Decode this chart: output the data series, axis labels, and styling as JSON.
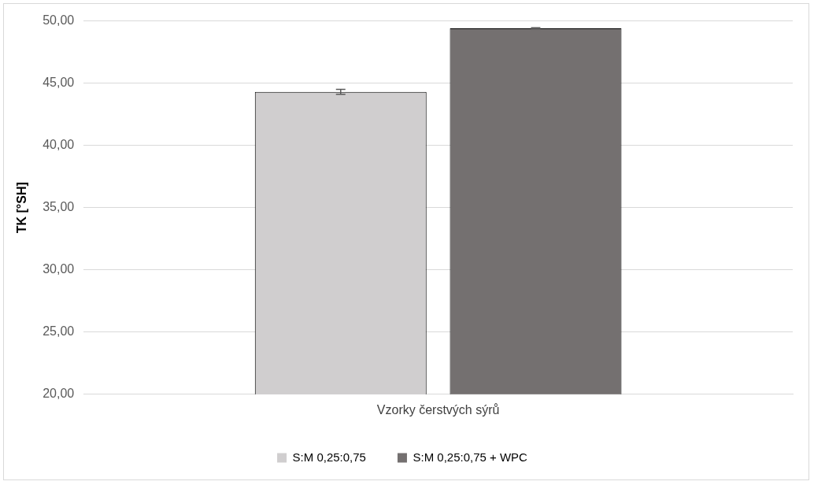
{
  "chart_data": {
    "type": "bar",
    "ylabel": "TK [°SH]",
    "categories": [
      "Vzorky čerstvých sýrů"
    ],
    "series": [
      {
        "name": "S:M 0,25:0,75",
        "color": "#d0cecf",
        "values": [
          44.3
        ],
        "errors": [
          0.2
        ]
      },
      {
        "name": "S:M 0,25:0,75 + WPC",
        "color": "#747070",
        "values": [
          49.4
        ],
        "errors": [
          0.05
        ]
      }
    ],
    "ylim": [
      20,
      50
    ],
    "yticks": [
      {
        "value": 20,
        "label": "20,00"
      },
      {
        "value": 25,
        "label": "25,00"
      },
      {
        "value": 30,
        "label": "30,00"
      },
      {
        "value": 35,
        "label": "35,00"
      },
      {
        "value": 40,
        "label": "40,00"
      },
      {
        "value": 45,
        "label": "45,00"
      },
      {
        "value": 50,
        "label": "50,00"
      }
    ],
    "grid": "y",
    "legend": "bottom"
  }
}
